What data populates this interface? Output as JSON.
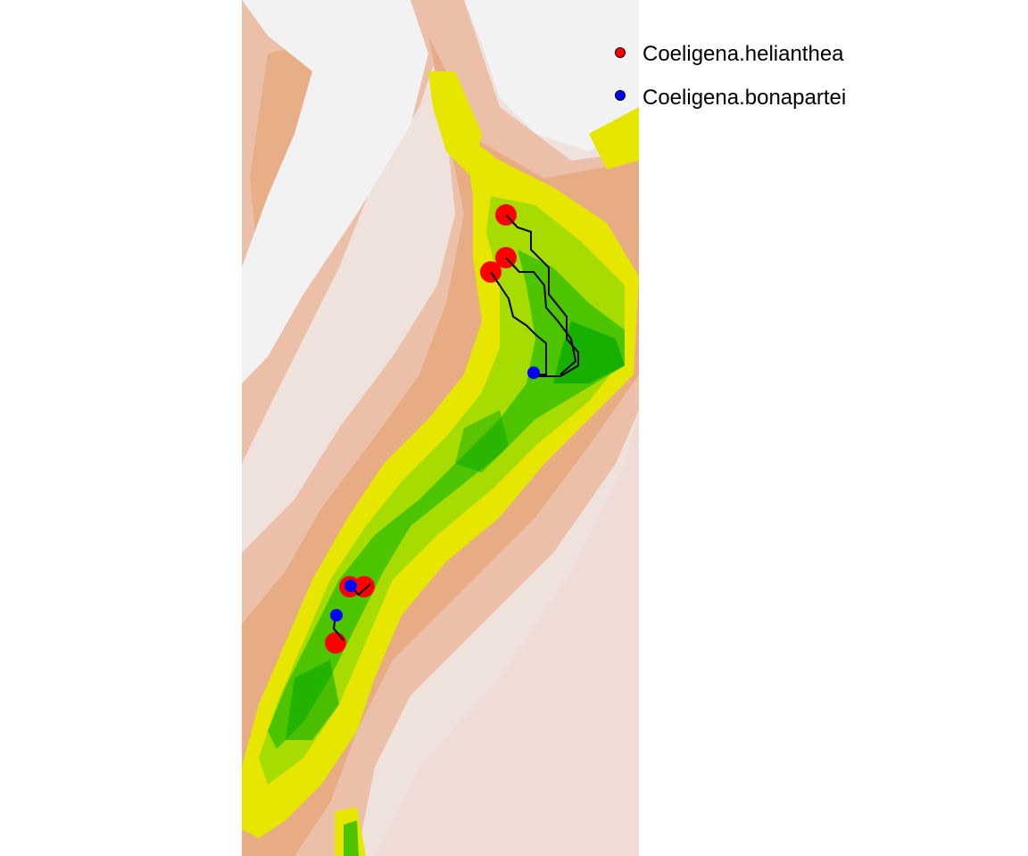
{
  "map": {
    "colors": {
      "background": "#ffffff",
      "elev_low": "#f2f2f2",
      "elev_tan1": "#efe1dc",
      "elev_tan2": "#ebbfa8",
      "elev_tan3": "#e6a06d",
      "elev_yellow": "#e6e600",
      "elev_yellowgreen": "#a6dc00",
      "elev_green": "#4dc400",
      "elev_darkgreen": "#00a600"
    }
  },
  "legend": {
    "items": [
      {
        "label": "Coeligena.helianthea",
        "color": "#ff0000"
      },
      {
        "label": "Coeligena.bonapartei",
        "color": "#0000ff"
      }
    ]
  },
  "points": {
    "helianthea_color": "#ff0000",
    "bonapartei_color": "#0000ff",
    "path_color": "#000000"
  }
}
